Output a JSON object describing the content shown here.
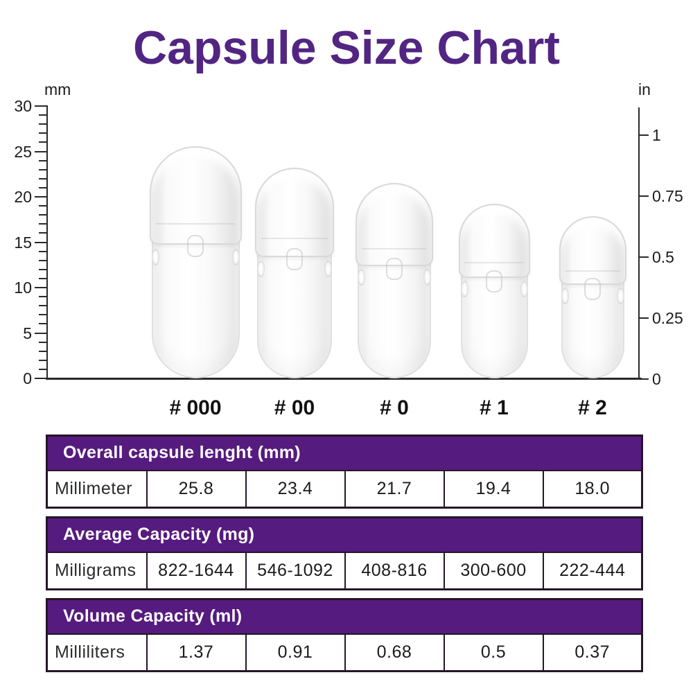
{
  "title": "Capsule Size Chart",
  "colors": {
    "title_purple": "#522583",
    "header_purple": "#561b7e",
    "cell_lavender": "#e7e2ef",
    "table_border": "#241627",
    "ink": "#1d1d1d"
  },
  "ruler": {
    "left_unit": "mm",
    "right_unit": "in",
    "left_max_mm": 30,
    "left_major_step_mm": 5,
    "left_minor_step_mm": 1,
    "left_major_labels": [
      "0",
      "5",
      "10",
      "15",
      "20",
      "25",
      "30"
    ],
    "right_ticks": [
      {
        "label": "1",
        "value": 1
      },
      {
        "label": "0.75",
        "value": 0.75
      },
      {
        "label": "0.5",
        "value": 0.5
      },
      {
        "label": "0.25",
        "value": 0.25
      },
      {
        "label": "0",
        "value": 0
      }
    ]
  },
  "capsules": [
    {
      "label": "# 000",
      "size": "000",
      "length_mm": 25.8
    },
    {
      "label": "# 00",
      "size": "00",
      "length_mm": 23.4
    },
    {
      "label": "# 0",
      "size": "0",
      "length_mm": 21.7
    },
    {
      "label": "# 1",
      "size": "1",
      "length_mm": 19.4
    },
    {
      "label": "# 2",
      "size": "2",
      "length_mm": 18.0
    }
  ],
  "tables": [
    {
      "header": "Overall capsule lenght (mm)",
      "row_label": "Millimeter",
      "values": [
        "25.8",
        "23.4",
        "21.7",
        "19.4",
        "18.0"
      ]
    },
    {
      "header": "Average Capacity (mg)",
      "row_label": "Milligrams",
      "values": [
        "822-1644",
        "546-1092",
        "408-816",
        "300-600",
        "222-444"
      ]
    },
    {
      "header": "Volume Capacity (ml)",
      "row_label": "Milliliters",
      "values": [
        "1.37",
        "0.91",
        "0.68",
        "0.5",
        "0.37"
      ]
    }
  ],
  "chart_data": {
    "type": "table",
    "title": "Capsule Size Chart",
    "categories": [
      "# 000",
      "# 00",
      "# 0",
      "# 1",
      "# 2"
    ],
    "series": [
      {
        "name": "Overall capsule lenght (mm)",
        "values": [
          25.8,
          23.4,
          21.7,
          19.4,
          18.0
        ]
      },
      {
        "name": "Average Capacity (mg)",
        "values": [
          "822-1644",
          "546-1092",
          "408-816",
          "300-600",
          "222-444"
        ]
      },
      {
        "name": "Volume Capacity (ml)",
        "values": [
          1.37,
          0.91,
          0.68,
          0.5,
          0.37
        ]
      }
    ],
    "left_axis": {
      "unit": "mm",
      "range": [
        0,
        30
      ],
      "major_step": 5,
      "minor_step": 1
    },
    "right_axis": {
      "unit": "in",
      "ticks": [
        0,
        0.25,
        0.5,
        0.75,
        1
      ]
    },
    "legend_position": "none",
    "grid": false
  }
}
